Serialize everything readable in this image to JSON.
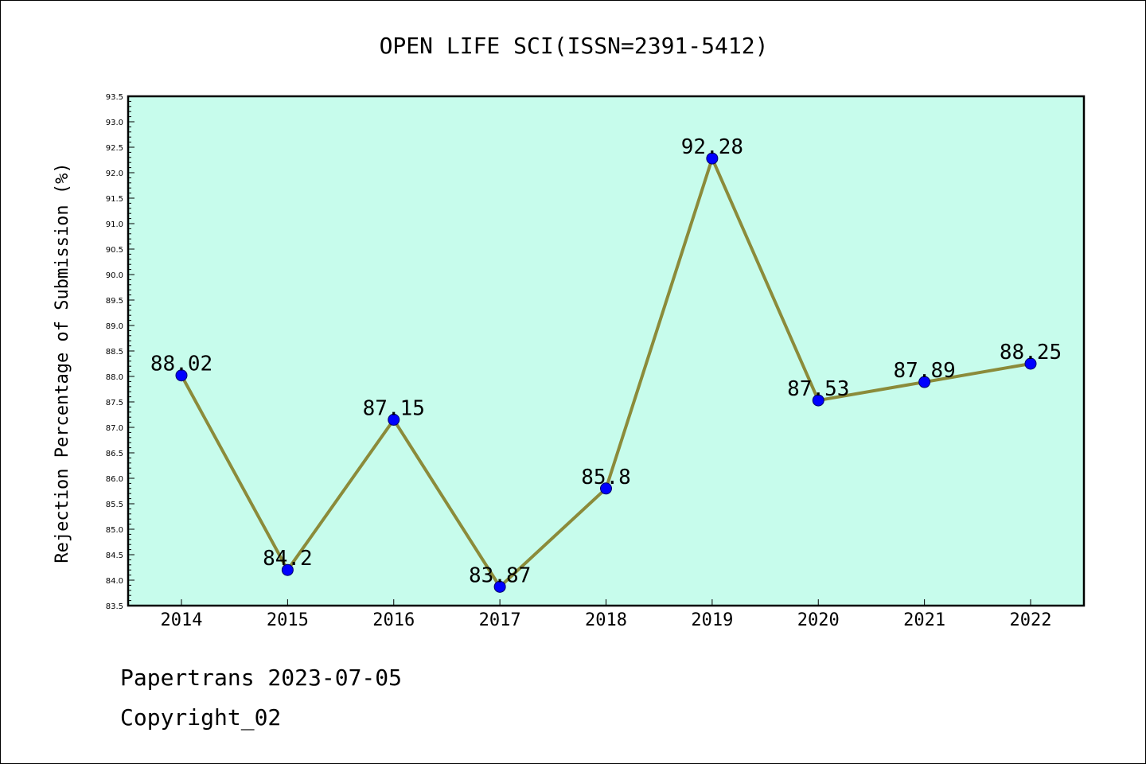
{
  "chart_data": {
    "type": "line",
    "title": "OPEN LIFE SCI(ISSN=2391-5412)",
    "ylabel": "Rejection Percentage of Submission (%)",
    "xlabel": "",
    "x": [
      "2014",
      "2015",
      "2016",
      "2017",
      "2018",
      "2019",
      "2020",
      "2021",
      "2022"
    ],
    "series": [
      {
        "values": [
          88.02,
          84.2,
          87.15,
          83.87,
          85.8,
          92.28,
          87.53,
          87.89,
          88.25
        ]
      }
    ],
    "data_labels": [
      "88.02",
      "84.2",
      "87.15",
      "83.87",
      "85.8",
      "92.28",
      "87.53",
      "87.89",
      "88.25"
    ],
    "ylim": [
      83.5,
      93.5
    ],
    "yticks": [
      "83.5",
      "84.0",
      "84.5",
      "85.0",
      "85.5",
      "86.0",
      "86.5",
      "87.0",
      "87.5",
      "88.0",
      "88.5",
      "89.0",
      "89.5",
      "90.0",
      "90.5",
      "91.0",
      "91.5",
      "92.0",
      "92.5",
      "93.0",
      "93.5"
    ],
    "grid": false,
    "colors": {
      "plot_background": "#c7fcec",
      "line": "#8b8b3a",
      "marker": "#0000ff"
    }
  },
  "footer": {
    "line1": "Papertrans 2023-07-05",
    "line2": "Copyright_02"
  }
}
